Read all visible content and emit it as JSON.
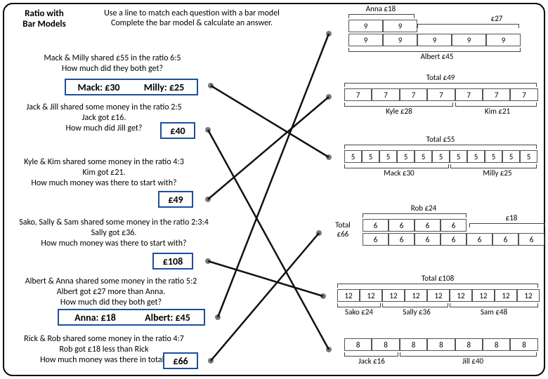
{
  "title": "Ratio with\nBar Models",
  "subtitle": "Use a line to match each question with a bar model\nComplete the bar model & calculate an answer.",
  "questions": {
    "q1": {
      "text": "Mack & Milly shared £55 in the ratio 6:5\nHow much did they both get?",
      "a1": "Mack: £30",
      "a2": "Milly: £25"
    },
    "q2": {
      "text": "Jack & Jill shared some money in the ratio 2:5\nJack got £16.\nHow much did Jill get?",
      "ans": "£40"
    },
    "q3": {
      "text": "Kyle & Kim shared some money in the ratio 4:3\nKim got £21.\nHow much money was there to start with?",
      "ans": "£49"
    },
    "q4": {
      "text": "Sako, Sally & Sam shared some money in the ratio 2:3:4\nSally got £36.\nHow much money was there to start with?",
      "ans": "£108"
    },
    "q5": {
      "text": "Albert & Anna shared some money in the ratio 5:2\nAlbert got £27 more than Anna.\nHow much did they both get?",
      "a1": "Anna: £18",
      "a2": "Albert: £45"
    },
    "q6": {
      "text": "Rick & Rob shared some money in the ratio 4:7\nRob got £18 less than Rick\nHow much money was there in total?",
      "ans": "£66"
    }
  },
  "bars": {
    "b1": {
      "top_label": "Anna £18",
      "right_label": "£27",
      "bot_label": "Albert £45",
      "r1": [
        "9",
        "9"
      ],
      "r2": [
        "9",
        "9",
        "9",
        "9",
        "9"
      ]
    },
    "b2": {
      "top_label": "Total £49",
      "mid_l": "Kyle £28",
      "mid_r": "Kim £21",
      "row": [
        "7",
        "7",
        "7",
        "7",
        "7",
        "7",
        "7"
      ]
    },
    "b3": {
      "top_label": "Total £55",
      "mid_l": "Mack £30",
      "mid_r": "Milly £25",
      "row": [
        "5",
        "5",
        "5",
        "5",
        "5",
        "5",
        "5",
        "5",
        "5",
        "5",
        "5"
      ]
    },
    "b4": {
      "top_label": "Rob £24",
      "right_label": "£18",
      "side_label": "Total\n£66",
      "r1": [
        "6",
        "6",
        "6",
        "6"
      ],
      "r2": [
        "6",
        "6",
        "6",
        "6",
        "6",
        "6",
        "6"
      ]
    },
    "b5": {
      "top_label": "Total £108",
      "l1": "Sako £24",
      "l2": "Sally £36",
      "l3": "Sam £48",
      "row": [
        "12",
        "12",
        "12",
        "12",
        "12",
        "12",
        "12",
        "12",
        "12"
      ]
    },
    "b6": {
      "l1": "Jack £16",
      "l2": "Jill £40",
      "row": [
        "8",
        "8",
        "8",
        "8",
        "8",
        "8",
        "8"
      ]
    }
  }
}
